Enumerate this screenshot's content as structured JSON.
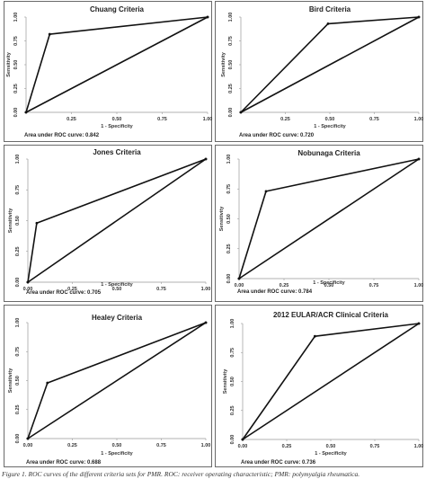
{
  "chart_data": [
    {
      "type": "line",
      "title": "Chuang Criteria",
      "xlabel": "1 - Specificity",
      "ylabel": "Sensitivity",
      "x_ticks": [
        "0.25",
        "0.50",
        "0.75",
        "1.00"
      ],
      "y_ticks": [
        "0.00",
        "0.25",
        "0.50",
        "0.75",
        "1.00"
      ],
      "xlim": [
        0,
        1
      ],
      "ylim": [
        0,
        1
      ],
      "series": [
        {
          "x": [
            0,
            1
          ],
          "y": [
            0,
            1
          ]
        },
        {
          "x": [
            0,
            0.13,
            1
          ],
          "y": [
            0,
            0.82,
            1
          ]
        }
      ],
      "auc_label": "Area under ROC curve: 0.842"
    },
    {
      "type": "line",
      "title": "Bird Criteria",
      "xlabel": "1 - Specificity",
      "ylabel": "Sensitivity",
      "x_ticks": [
        "0.25",
        "0.50",
        "0.75",
        "1.00"
      ],
      "y_ticks": [
        "0.00",
        "0.25",
        "0.50",
        "0.75",
        "1.00"
      ],
      "xlim": [
        0,
        1
      ],
      "ylim": [
        0,
        1
      ],
      "series": [
        {
          "x": [
            0,
            1
          ],
          "y": [
            0,
            1
          ]
        },
        {
          "x": [
            0,
            0.49,
            1
          ],
          "y": [
            0,
            0.93,
            1
          ]
        }
      ],
      "auc_label": "Area under ROC curve: 0.720"
    },
    {
      "type": "line",
      "title": "Jones Criteria",
      "xlabel": "1 - Specificity",
      "ylabel": "Sensitivity",
      "x_ticks": [
        "0.00",
        "0.25",
        "0.50",
        "0.75",
        "1.00"
      ],
      "y_ticks": [
        "0.00",
        "0.25",
        "0.50",
        "0.75",
        "1.00"
      ],
      "xlim": [
        0,
        1
      ],
      "ylim": [
        0,
        1
      ],
      "series": [
        {
          "x": [
            0,
            1
          ],
          "y": [
            0,
            1
          ]
        },
        {
          "x": [
            0,
            0.05,
            1
          ],
          "y": [
            0,
            0.48,
            1
          ]
        }
      ],
      "auc_label": "Area under ROC curve: 0.705"
    },
    {
      "type": "line",
      "title": "Nobunaga Criteria",
      "xlabel": "1 - Specificity",
      "ylabel": "Sensitivity",
      "x_ticks": [
        "0.00",
        "0.25",
        "0.50",
        "0.75",
        "1.00"
      ],
      "y_ticks": [
        "0.00",
        "0.25",
        "0.50",
        "0.75",
        "1.00"
      ],
      "xlim": [
        0,
        1
      ],
      "ylim": [
        0,
        1
      ],
      "series": [
        {
          "x": [
            0,
            1
          ],
          "y": [
            0,
            1
          ]
        },
        {
          "x": [
            0,
            0.15,
            1
          ],
          "y": [
            0,
            0.73,
            1
          ]
        }
      ],
      "auc_label": "Area under ROC curve: 0.784"
    },
    {
      "type": "line",
      "title": "Healey Criteria",
      "xlabel": "1 - Specificity",
      "ylabel": "Sensitivity",
      "x_ticks": [
        "0.00",
        "0.25",
        "0.50",
        "0.75",
        "1.00"
      ],
      "y_ticks": [
        "0.00",
        "0.25",
        "0.50",
        "0.75",
        "1.00"
      ],
      "xlim": [
        0,
        1
      ],
      "ylim": [
        0,
        1
      ],
      "series": [
        {
          "x": [
            0,
            1
          ],
          "y": [
            0,
            1
          ]
        },
        {
          "x": [
            0,
            0.11,
            1
          ],
          "y": [
            0,
            0.48,
            1
          ]
        }
      ],
      "auc_label": "Area under ROC curve: 0.688"
    },
    {
      "type": "line",
      "title": "2012 EULAR/ACR Clinical Criteria",
      "xlabel": "1 - Specificity",
      "ylabel": "Sensitivity",
      "x_ticks": [
        "0.00",
        "0.25",
        "0.50",
        "0.75",
        "1.00"
      ],
      "y_ticks": [
        "0.00",
        "0.25",
        "0.50",
        "0.75",
        "1.00"
      ],
      "xlim": [
        0,
        1
      ],
      "ylim": [
        0,
        1
      ],
      "series": [
        {
          "x": [
            0,
            1
          ],
          "y": [
            0,
            1
          ]
        },
        {
          "x": [
            0,
            0.41,
            1
          ],
          "y": [
            0,
            0.89,
            1
          ]
        }
      ],
      "auc_label": "Area under ROC curve: 0.736"
    }
  ],
  "caption": "Figure 1. ROC curves of the different criteria sets for PMR. ROC: receiver operating characteristic; PMR: polymyalgia rheumatica."
}
